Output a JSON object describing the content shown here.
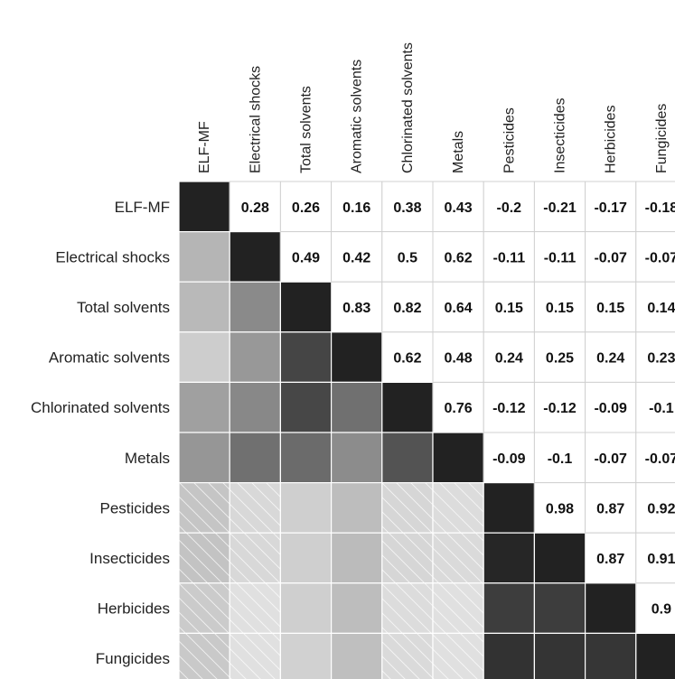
{
  "chart_data": {
    "type": "heatmap",
    "title": "",
    "variables": [
      "ELF-MF",
      "Electrical shocks",
      "Total solvents",
      "Aromatic solvents",
      "Chlorinated solvents",
      "Metals",
      "Pesticides",
      "Insecticides",
      "Herbicides",
      "Fungicides"
    ],
    "matrix": [
      [
        1,
        0.28,
        0.26,
        0.16,
        0.38,
        0.43,
        -0.2,
        -0.21,
        -0.17,
        -0.18
      ],
      [
        0.28,
        1,
        0.49,
        0.42,
        0.5,
        0.62,
        -0.11,
        -0.11,
        -0.07,
        -0.07
      ],
      [
        0.26,
        0.49,
        1,
        0.83,
        0.82,
        0.64,
        0.15,
        0.15,
        0.15,
        0.14
      ],
      [
        0.16,
        0.42,
        0.83,
        1,
        0.62,
        0.48,
        0.24,
        0.25,
        0.24,
        0.23
      ],
      [
        0.38,
        0.5,
        0.82,
        0.62,
        1,
        0.76,
        -0.12,
        -0.12,
        -0.09,
        -0.1
      ],
      [
        0.43,
        0.62,
        0.64,
        0.48,
        0.76,
        1,
        -0.09,
        -0.1,
        -0.07,
        -0.07
      ],
      [
        -0.2,
        -0.11,
        0.15,
        0.24,
        -0.12,
        -0.09,
        1,
        0.98,
        0.87,
        0.92
      ],
      [
        -0.21,
        -0.11,
        0.15,
        0.25,
        -0.12,
        -0.1,
        0.98,
        1,
        0.87,
        0.91
      ],
      [
        -0.17,
        -0.07,
        0.15,
        0.24,
        -0.09,
        -0.07,
        0.87,
        0.87,
        1,
        0.9
      ],
      [
        -0.18,
        -0.07,
        0.14,
        0.23,
        -0.1,
        -0.07,
        0.92,
        0.91,
        0.9,
        1
      ]
    ],
    "upper_triangle": "numbers",
    "lower_triangle": "shaded",
    "negative_marker": "diagonal-hatch",
    "grid": true,
    "legend": "none"
  }
}
